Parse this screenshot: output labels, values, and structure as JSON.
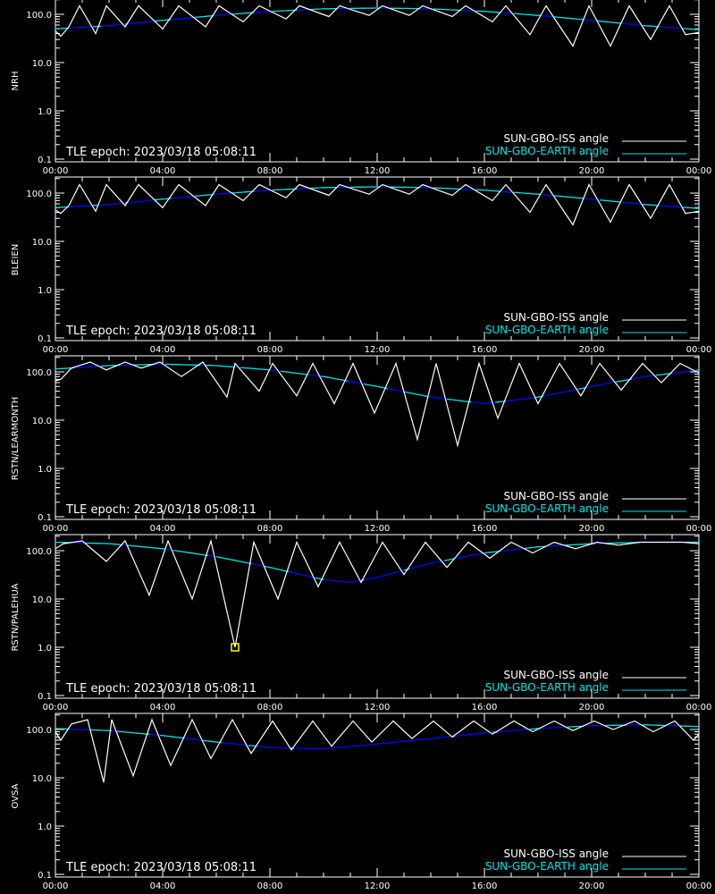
{
  "figure": {
    "epoch_text": "TLE epoch: 2023/03/18 05:08:11",
    "x_tick_labels": [
      "00:00",
      "04:00",
      "08:00",
      "12:00",
      "16:00",
      "20:00",
      "00:00"
    ],
    "y_tick_labels": [
      "0.1",
      "1.0",
      "10.0",
      "100.0"
    ],
    "legend": [
      {
        "label": "SUN-GBO-ISS angle",
        "color": "#ffffff"
      },
      {
        "label": "SUN-GBO-EARTH angle",
        "color": "#00e5e5"
      }
    ],
    "colors": {
      "earth_below_iss": "#0000ff",
      "earth_above_iss": "#00e5e5",
      "iss": "#ffffff",
      "marker": "#ffff00"
    }
  },
  "chart_data": [
    {
      "type": "line",
      "ylabel": "NRH",
      "xlim_hours": [
        0,
        24
      ],
      "ylim": [
        0.1,
        200
      ],
      "y_scale": "log",
      "series": [
        {
          "name": "SUN-GBO-EARTH angle",
          "x": [
            0,
            2,
            4,
            6,
            8,
            10,
            12,
            14,
            16,
            18,
            20,
            22,
            24
          ],
          "values": [
            50,
            58,
            75,
            95,
            115,
            130,
            135,
            130,
            115,
            95,
            75,
            58,
            48
          ]
        },
        {
          "name": "SUN-GBO-ISS angle",
          "x": [
            0.0,
            0.2,
            0.5,
            0.9,
            1.5,
            1.9,
            2.6,
            3.1,
            4.0,
            4.6,
            5.6,
            6.1,
            7.0,
            7.6,
            8.6,
            9.1,
            10.2,
            10.6,
            11.7,
            12.2,
            13.2,
            13.7,
            14.8,
            15.3,
            16.3,
            16.8,
            17.7,
            18.3,
            19.3,
            19.9,
            20.7,
            21.4,
            22.2,
            22.9,
            23.5,
            24.0
          ],
          "values": [
            45,
            35,
            55,
            150,
            40,
            150,
            55,
            150,
            50,
            150,
            55,
            150,
            70,
            150,
            80,
            150,
            90,
            150,
            95,
            150,
            95,
            150,
            90,
            150,
            70,
            150,
            38,
            150,
            22,
            150,
            22,
            150,
            30,
            150,
            38,
            42
          ]
        }
      ]
    },
    {
      "type": "line",
      "ylabel": "BLEIEN",
      "xlim_hours": [
        0,
        24
      ],
      "ylim": [
        0.1,
        200
      ],
      "y_scale": "log",
      "series": [
        {
          "name": "SUN-GBO-EARTH angle",
          "x": [
            0,
            2,
            4,
            6,
            8,
            10,
            12,
            14,
            16,
            18,
            20,
            22,
            24
          ],
          "values": [
            50,
            58,
            75,
            95,
            115,
            130,
            135,
            130,
            115,
            95,
            75,
            58,
            48
          ]
        },
        {
          "name": "SUN-GBO-ISS angle",
          "x": [
            0.0,
            0.2,
            0.5,
            0.9,
            1.5,
            1.9,
            2.6,
            3.1,
            4.0,
            4.6,
            5.6,
            6.1,
            7.0,
            7.6,
            8.6,
            9.1,
            10.2,
            10.6,
            11.7,
            12.2,
            13.2,
            13.7,
            14.8,
            15.3,
            16.3,
            16.8,
            17.7,
            18.3,
            19.3,
            19.9,
            20.7,
            21.4,
            22.2,
            22.9,
            23.5,
            24.0
          ],
          "values": [
            45,
            38,
            55,
            150,
            42,
            150,
            55,
            150,
            50,
            150,
            55,
            150,
            70,
            150,
            80,
            150,
            90,
            150,
            95,
            150,
            95,
            150,
            90,
            150,
            70,
            150,
            40,
            150,
            22,
            150,
            25,
            150,
            30,
            150,
            38,
            42
          ]
        }
      ]
    },
    {
      "type": "line",
      "ylabel": "RSTN/LEARMONTH",
      "xlim_hours": [
        0,
        24
      ],
      "ylim": [
        0.1,
        200
      ],
      "y_scale": "log",
      "series": [
        {
          "name": "SUN-GBO-EARTH angle",
          "x": [
            0,
            2,
            4,
            6,
            8,
            10,
            12,
            14,
            16,
            18,
            20,
            22,
            24
          ],
          "values": [
            115,
            135,
            145,
            135,
            110,
            80,
            50,
            30,
            22,
            30,
            50,
            80,
            110
          ]
        },
        {
          "name": "SUN-GBO-ISS angle",
          "x": [
            0.0,
            0.2,
            0.6,
            1.3,
            1.9,
            2.6,
            3.2,
            3.9,
            4.7,
            5.5,
            6.4,
            6.7,
            7.6,
            8.1,
            9.0,
            9.6,
            10.4,
            11.1,
            11.9,
            12.7,
            13.5,
            14.2,
            15.0,
            15.8,
            16.5,
            17.3,
            18.0,
            18.8,
            19.6,
            20.3,
            21.1,
            21.9,
            22.6,
            23.3,
            24.0
          ],
          "values": [
            65,
            70,
            120,
            160,
            110,
            160,
            120,
            160,
            80,
            160,
            30,
            150,
            40,
            150,
            32,
            150,
            22,
            150,
            14,
            150,
            4,
            150,
            3,
            150,
            11,
            150,
            22,
            150,
            32,
            150,
            42,
            150,
            60,
            150,
            95
          ]
        }
      ]
    },
    {
      "type": "line",
      "ylabel": "RSTN/PALEHUA",
      "xlim_hours": [
        0,
        24
      ],
      "ylim": [
        0.1,
        200
      ],
      "y_scale": "log",
      "series": [
        {
          "name": "SUN-GBO-EARTH angle",
          "x": [
            0,
            2,
            4,
            6,
            8,
            10,
            11,
            12,
            14,
            16,
            18,
            20,
            22,
            24
          ],
          "values": [
            150,
            140,
            110,
            75,
            45,
            25,
            22,
            28,
            55,
            90,
            120,
            140,
            150,
            150
          ]
        },
        {
          "name": "SUN-GBO-ISS angle",
          "x": [
            0.0,
            0.3,
            1.0,
            1.9,
            2.6,
            3.5,
            4.2,
            5.1,
            5.8,
            6.7,
            7.4,
            8.3,
            9.0,
            9.8,
            10.6,
            11.4,
            12.2,
            13.0,
            13.8,
            14.6,
            15.4,
            16.2,
            17.0,
            17.8,
            18.6,
            19.4,
            20.2,
            21.0,
            21.8,
            22.6,
            23.4,
            24.0
          ],
          "values": [
            110,
            140,
            160,
            60,
            160,
            12,
            160,
            10,
            160,
            1.0,
            150,
            10,
            150,
            18,
            150,
            22,
            150,
            32,
            150,
            45,
            150,
            70,
            150,
            90,
            150,
            110,
            150,
            130,
            150,
            150,
            150,
            140
          ]
        }
      ],
      "marker": {
        "x": 6.7,
        "y": 1.0
      }
    },
    {
      "type": "line",
      "ylabel": "OVSA",
      "xlim_hours": [
        0,
        24
      ],
      "ylim": [
        0.1,
        200
      ],
      "y_scale": "log",
      "series": [
        {
          "name": "SUN-GBO-EARTH angle",
          "x": [
            0,
            2,
            4,
            6,
            8,
            10,
            12,
            14,
            16,
            18,
            20,
            22,
            24
          ],
          "values": [
            105,
            95,
            75,
            55,
            42,
            40,
            50,
            65,
            85,
            105,
            120,
            125,
            115
          ]
        },
        {
          "name": "SUN-GBO-ISS angle",
          "x": [
            0.0,
            0.2,
            0.6,
            1.2,
            1.8,
            2.1,
            2.9,
            3.6,
            4.3,
            5.1,
            5.8,
            6.6,
            7.3,
            8.1,
            8.8,
            9.6,
            10.3,
            11.1,
            11.8,
            12.6,
            13.3,
            14.1,
            14.8,
            15.6,
            16.3,
            17.1,
            17.8,
            18.6,
            19.3,
            20.1,
            20.8,
            21.6,
            22.3,
            23.1,
            23.8,
            24.0
          ],
          "values": [
            90,
            60,
            130,
            160,
            8,
            160,
            11,
            160,
            18,
            160,
            25,
            160,
            32,
            150,
            38,
            150,
            45,
            150,
            55,
            150,
            65,
            150,
            70,
            150,
            80,
            150,
            90,
            150,
            95,
            150,
            100,
            150,
            90,
            150,
            60,
            80
          ]
        }
      ]
    }
  ]
}
